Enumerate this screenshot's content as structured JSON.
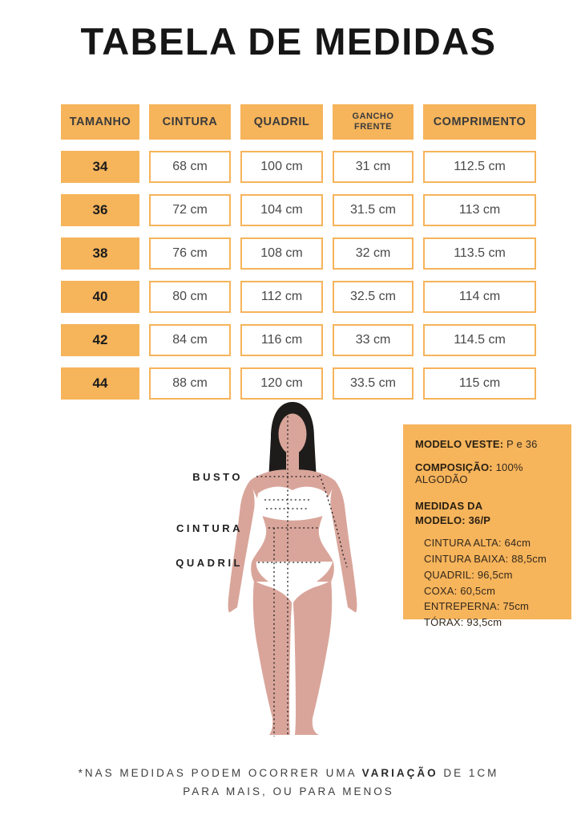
{
  "title": "TABELA DE MEDIDAS",
  "table": {
    "headers": [
      "TAMANHO",
      "CINTURA",
      "QUADRIL",
      "GANCHO FRENTE",
      "COMPRIMENTO"
    ],
    "rows": [
      {
        "tamanho": "34",
        "cintura": "68 cm",
        "quadril": "100 cm",
        "gancho_frente": "31 cm",
        "comprimento": "112.5 cm"
      },
      {
        "tamanho": "36",
        "cintura": "72 cm",
        "quadril": "104 cm",
        "gancho_frente": "31.5 cm",
        "comprimento": "113 cm"
      },
      {
        "tamanho": "38",
        "cintura": "76 cm",
        "quadril": "108 cm",
        "gancho_frente": "32 cm",
        "comprimento": "113.5 cm"
      },
      {
        "tamanho": "40",
        "cintura": "80 cm",
        "quadril": "112 cm",
        "gancho_frente": "32.5 cm",
        "comprimento": "114 cm"
      },
      {
        "tamanho": "42",
        "cintura": "84 cm",
        "quadril": "116 cm",
        "gancho_frente": "33 cm",
        "comprimento": "114.5 cm"
      },
      {
        "tamanho": "44",
        "cintura": "88 cm",
        "quadril": "120 cm",
        "gancho_frente": "33.5 cm",
        "comprimento": "115 cm"
      }
    ]
  },
  "figure": {
    "labels": {
      "busto": "BUSTO",
      "cintura": "CINTURA",
      "quadril": "QUADRIL"
    }
  },
  "info_box": {
    "modelo_veste": {
      "label": "MODELO VESTE:",
      "value": "P e 36"
    },
    "composicao": {
      "label": "COMPOSIÇÃO:",
      "value": "100% ALGODÃO"
    },
    "medidas_heading": "MEDIDAS DA MODELO: 36/P",
    "measurements": [
      "CINTURA ALTA: 64cm",
      "CINTURA BAIXA: 88,5cm",
      "QUADRIL: 96,5cm",
      "COXA: 60,5cm",
      "ENTREPERNA: 75cm",
      "TÓRAX: 93,5cm"
    ]
  },
  "footnote": {
    "line1_prefix": "*NAS MEDIDAS PODEM OCORRER UMA ",
    "line1_bold": "VARIAÇÃO",
    "line1_suffix": " DE 1CM",
    "line2": "PARA MAIS, OU PARA MENOS"
  },
  "colors": {
    "accent_orange": "#F6B45B",
    "skin": "#D9A59A",
    "hair": "#1E1C1A",
    "background": "#FFFFFF"
  }
}
